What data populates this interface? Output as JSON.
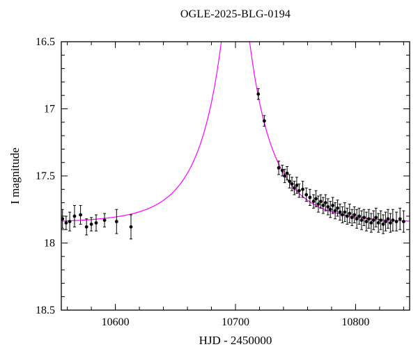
{
  "page": {
    "background": "#ffffff"
  },
  "chart_data": {
    "type": "scatter",
    "title": "OGLE-2025-BLG-0194",
    "xlabel": "HJD - 2450000",
    "ylabel": "I magnitude",
    "xlim": [
      10555,
      10845
    ],
    "ylim": [
      16.5,
      18.5
    ],
    "y_inverted": true,
    "grid": false,
    "legend": "none",
    "axis_color": "#000000",
    "x_major_ticks": [
      10600,
      10700,
      10800
    ],
    "x_minor_step": 20,
    "y_major_ticks": [
      16.5,
      17,
      17.5,
      18,
      18.5
    ],
    "y_tick_labels": [
      "16.5",
      "17",
      "17.5",
      "18",
      "18.5"
    ],
    "y_minor_step": 0.1,
    "series": [
      {
        "name": "single-lens microlensing model",
        "type": "model_line",
        "color": "#ff00ff",
        "model": {
          "t0": 10700,
          "tE": 44,
          "u0": 0.13,
          "baseline_mag": 17.85
        },
        "note": "Paczynski curve; peak is brighter than the 16.5 mag axis limit and is clipped"
      },
      {
        "name": "OGLE I-band photometry",
        "type": "scatter_errorbar",
        "color": "#000000",
        "marker_radius": 2.4,
        "points": [
          [
            10556,
            17.82,
            0.07
          ],
          [
            10559,
            17.85,
            0.05
          ],
          [
            10562,
            17.84,
            0.07
          ],
          [
            10566,
            17.8,
            0.08
          ],
          [
            10571,
            17.79,
            0.07
          ],
          [
            10576,
            17.88,
            0.06
          ],
          [
            10580,
            17.86,
            0.05
          ],
          [
            10584,
            17.85,
            0.06
          ],
          [
            10591,
            17.83,
            0.05
          ],
          [
            10601,
            17.84,
            0.09
          ],
          [
            10613,
            17.88,
            0.09
          ],
          [
            10719,
            16.89,
            0.04
          ],
          [
            10724,
            17.09,
            0.04
          ],
          [
            10736,
            17.44,
            0.05
          ],
          [
            10739,
            17.46,
            0.04
          ],
          [
            10741,
            17.5,
            0.05
          ],
          [
            10743,
            17.48,
            0.05
          ],
          [
            10745,
            17.54,
            0.05
          ],
          [
            10747,
            17.56,
            0.05
          ],
          [
            10749,
            17.59,
            0.05
          ],
          [
            10751,
            17.57,
            0.06
          ],
          [
            10753,
            17.61,
            0.05
          ],
          [
            10756,
            17.6,
            0.06
          ],
          [
            10759,
            17.64,
            0.05
          ],
          [
            10762,
            17.66,
            0.06
          ],
          [
            10765,
            17.69,
            0.05
          ],
          [
            10767,
            17.67,
            0.06
          ],
          [
            10769,
            17.71,
            0.06
          ],
          [
            10771,
            17.69,
            0.05
          ],
          [
            10773,
            17.72,
            0.06
          ],
          [
            10775,
            17.7,
            0.06
          ],
          [
            10777,
            17.73,
            0.06
          ],
          [
            10779,
            17.75,
            0.06
          ],
          [
            10781,
            17.72,
            0.06
          ],
          [
            10783,
            17.76,
            0.06
          ],
          [
            10785,
            17.74,
            0.06
          ],
          [
            10787,
            17.77,
            0.06
          ],
          [
            10789,
            17.79,
            0.06
          ],
          [
            10791,
            17.77,
            0.07
          ],
          [
            10793,
            17.8,
            0.06
          ],
          [
            10795,
            17.78,
            0.07
          ],
          [
            10797,
            17.81,
            0.06
          ],
          [
            10799,
            17.79,
            0.06
          ],
          [
            10801,
            17.82,
            0.07
          ],
          [
            10803,
            17.8,
            0.06
          ],
          [
            10805,
            17.83,
            0.07
          ],
          [
            10807,
            17.81,
            0.06
          ],
          [
            10809,
            17.84,
            0.07
          ],
          [
            10811,
            17.82,
            0.07
          ],
          [
            10813,
            17.85,
            0.07
          ],
          [
            10815,
            17.83,
            0.07
          ],
          [
            10817,
            17.81,
            0.07
          ],
          [
            10819,
            17.85,
            0.07
          ],
          [
            10821,
            17.83,
            0.07
          ],
          [
            10823,
            17.86,
            0.07
          ],
          [
            10825,
            17.84,
            0.07
          ],
          [
            10827,
            17.82,
            0.07
          ],
          [
            10829,
            17.85,
            0.07
          ],
          [
            10831,
            17.83,
            0.08
          ],
          [
            10834,
            17.84,
            0.07
          ],
          [
            10837,
            17.82,
            0.08
          ],
          [
            10840,
            17.84,
            0.08
          ]
        ]
      }
    ]
  }
}
